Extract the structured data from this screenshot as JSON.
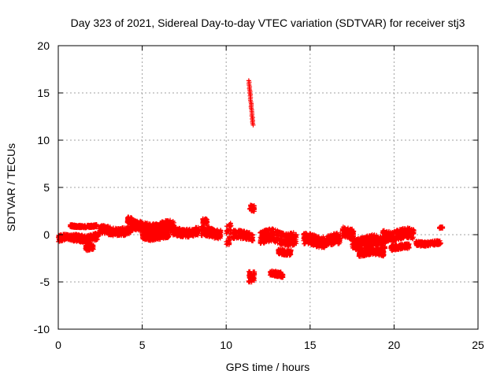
{
  "chart_data": {
    "type": "scatter",
    "title": "Day 323 of 2021, Sidereal Day-to-day VTEC variation (SDTVAR) for receiver stj3",
    "xlabel": "GPS time / hours",
    "ylabel": "SDTVAR / TECUs",
    "xlim": [
      0,
      25
    ],
    "ylim": [
      -10,
      20
    ],
    "xticks": [
      0,
      5,
      10,
      15,
      20,
      25
    ],
    "yticks": [
      -10,
      -5,
      0,
      5,
      10,
      15,
      20
    ],
    "xtick_labels": [
      "0",
      "5",
      "10",
      "15",
      "20",
      "25"
    ],
    "ytick_labels": [
      "-10",
      "-5",
      "0",
      "5",
      "10",
      "15",
      "20"
    ],
    "grid": true,
    "marker": "+",
    "series_color": "#ff0000",
    "clusters": [
      {
        "x_start": 0.0,
        "x_end": 1.0,
        "y_center": -0.4,
        "spread": 0.35
      },
      {
        "x_start": 0.7,
        "x_end": 2.3,
        "y_center": 0.9,
        "spread": 0.15
      },
      {
        "x_start": 0.9,
        "x_end": 2.4,
        "y_center": -0.3,
        "spread": 0.4
      },
      {
        "x_start": 1.6,
        "x_end": 2.1,
        "y_center": -1.3,
        "spread": 0.3
      },
      {
        "x_start": 2.4,
        "x_end": 4.3,
        "y_center": 0.4,
        "spread": 0.45
      },
      {
        "x_start": 4.1,
        "x_end": 4.4,
        "y_center": 1.5,
        "spread": 0.35
      },
      {
        "x_start": 4.3,
        "x_end": 6.9,
        "y_center": 0.8,
        "spread": 0.55
      },
      {
        "x_start": 5.0,
        "x_end": 6.6,
        "y_center": -0.1,
        "spread": 0.4
      },
      {
        "x_start": 6.8,
        "x_end": 8.4,
        "y_center": 0.3,
        "spread": 0.45
      },
      {
        "x_start": 8.5,
        "x_end": 9.7,
        "y_center": 0.2,
        "spread": 0.5
      },
      {
        "x_start": 8.6,
        "x_end": 8.9,
        "y_center": 1.3,
        "spread": 0.3
      },
      {
        "x_start": 10.0,
        "x_end": 10.3,
        "y_center": 0.0,
        "spread": 1.2
      },
      {
        "x_start": 10.4,
        "x_end": 11.6,
        "y_center": -0.1,
        "spread": 0.45
      },
      {
        "x_start": 11.4,
        "x_end": 11.7,
        "y_center": 2.9,
        "spread": 0.35
      },
      {
        "x_start": 11.3,
        "x_end": 11.7,
        "y_center": -4.3,
        "spread": 0.6
      },
      {
        "x_start": 12.0,
        "x_end": 14.2,
        "y_center": -0.3,
        "spread": 0.7
      },
      {
        "x_start": 13.1,
        "x_end": 13.9,
        "y_center": -1.8,
        "spread": 0.3
      },
      {
        "x_start": 12.6,
        "x_end": 13.4,
        "y_center": -4.2,
        "spread": 0.3
      },
      {
        "x_start": 14.6,
        "x_end": 16.8,
        "y_center": -0.6,
        "spread": 0.6
      },
      {
        "x_start": 16.9,
        "x_end": 17.6,
        "y_center": 0.2,
        "spread": 0.55
      },
      {
        "x_start": 17.5,
        "x_end": 19.5,
        "y_center": -0.8,
        "spread": 0.6
      },
      {
        "x_start": 17.9,
        "x_end": 19.4,
        "y_center": -1.9,
        "spread": 0.35
      },
      {
        "x_start": 19.3,
        "x_end": 21.2,
        "y_center": 0.0,
        "spread": 0.55
      },
      {
        "x_start": 19.8,
        "x_end": 20.9,
        "y_center": -1.3,
        "spread": 0.3
      },
      {
        "x_start": 21.3,
        "x_end": 22.8,
        "y_center": -0.9,
        "spread": 0.25
      },
      {
        "x_start": 22.7,
        "x_end": 22.9,
        "y_center": 0.7,
        "spread": 0.1
      }
    ],
    "spike": {
      "x_start": 11.35,
      "x_end": 11.6,
      "y_start": 16.3,
      "y_end": 11.6
    }
  }
}
